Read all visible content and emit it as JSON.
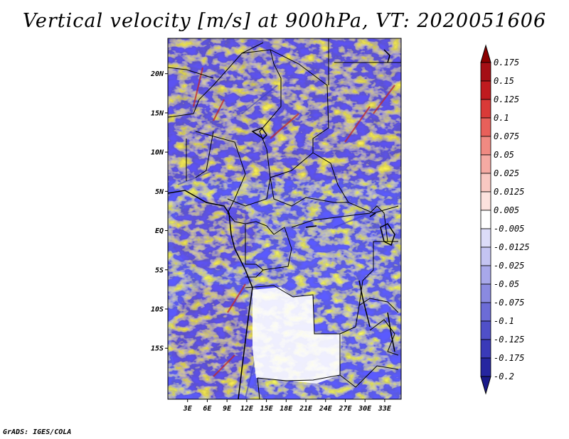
{
  "title": "Vertical velocity [m/s] at 900hPa, VT: 2020051606",
  "footer": "GrADS: IGES/COLA",
  "map": {
    "lat_labels": [
      {
        "label": "20N",
        "lat": 20
      },
      {
        "label": "15N",
        "lat": 15
      },
      {
        "label": "10N",
        "lat": 10
      },
      {
        "label": "5N",
        "lat": 5
      },
      {
        "label": "EQ",
        "lat": 0
      },
      {
        "label": "5S",
        "lat": -5
      },
      {
        "label": "10S",
        "lat": -10
      },
      {
        "label": "15S",
        "lat": -15
      }
    ],
    "lon_labels": [
      {
        "label": "3E",
        "lon": 3
      },
      {
        "label": "6E",
        "lon": 6
      },
      {
        "label": "9E",
        "lon": 9
      },
      {
        "label": "12E",
        "lon": 12
      },
      {
        "label": "15E",
        "lon": 15
      },
      {
        "label": "18E",
        "lon": 18
      },
      {
        "label": "21E",
        "lon": 21
      },
      {
        "label": "24E",
        "lon": 24
      },
      {
        "label": "27E",
        "lon": 27
      },
      {
        "label": "30E",
        "lon": 30
      },
      {
        "label": "33E",
        "lon": 33
      }
    ]
  },
  "colorbar": {
    "labels": [
      "0.175",
      "0.15",
      "0.125",
      "0.1",
      "0.075",
      "0.05",
      "0.025",
      "0.0125",
      "0.005",
      "-0.005",
      "-0.0125",
      "-0.025",
      "-0.05",
      "-0.075",
      "-0.1",
      "-0.125",
      "-0.175",
      "-0.2"
    ],
    "colors": [
      "#a50f15",
      "#c01b1f",
      "#d93a38",
      "#e8605a",
      "#f08a82",
      "#f5aaa3",
      "#f9c8c2",
      "#fce2de",
      "#ffffff",
      "#dcdcf8",
      "#c4c4f2",
      "#a8a8ea",
      "#8a8ae0",
      "#6c6cd6",
      "#5050c8",
      "#3a3ab8",
      "#2626a0"
    ],
    "top_arrow_color": "#8b0000",
    "bottom_arrow_color": "#1a1a8a"
  }
}
